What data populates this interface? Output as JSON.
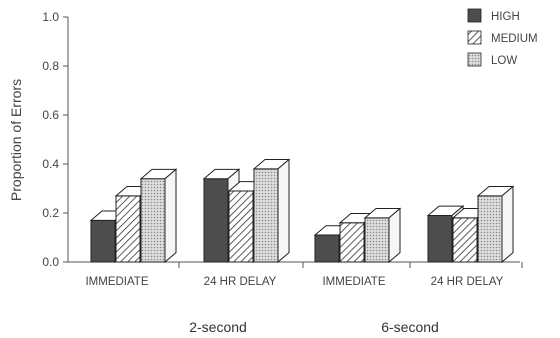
{
  "chart_data": {
    "type": "bar",
    "ylabel": "Proportion of Errors",
    "ylim": [
      0,
      1.0
    ],
    "yticks": [
      "0.0",
      "0.2",
      "0.4",
      "0.6",
      "0.8",
      "1.0"
    ],
    "groups": [
      "2-second",
      "6-second"
    ],
    "categories": [
      "IMMEDIATE",
      "24 HR DELAY",
      "IMMEDIATE",
      "24 HR DELAY"
    ],
    "series": [
      {
        "name": "HIGH",
        "values": [
          0.17,
          0.34,
          0.11,
          0.19
        ],
        "color": "#4d4d4d"
      },
      {
        "name": "MEDIUM",
        "values": [
          0.27,
          0.29,
          0.16,
          0.18
        ],
        "color": "#ffffff"
      },
      {
        "name": "LOW",
        "values": [
          0.34,
          0.38,
          0.18,
          0.27
        ],
        "color": "#d8d8d8"
      }
    ],
    "legend_position": "top-right",
    "grid": false
  }
}
